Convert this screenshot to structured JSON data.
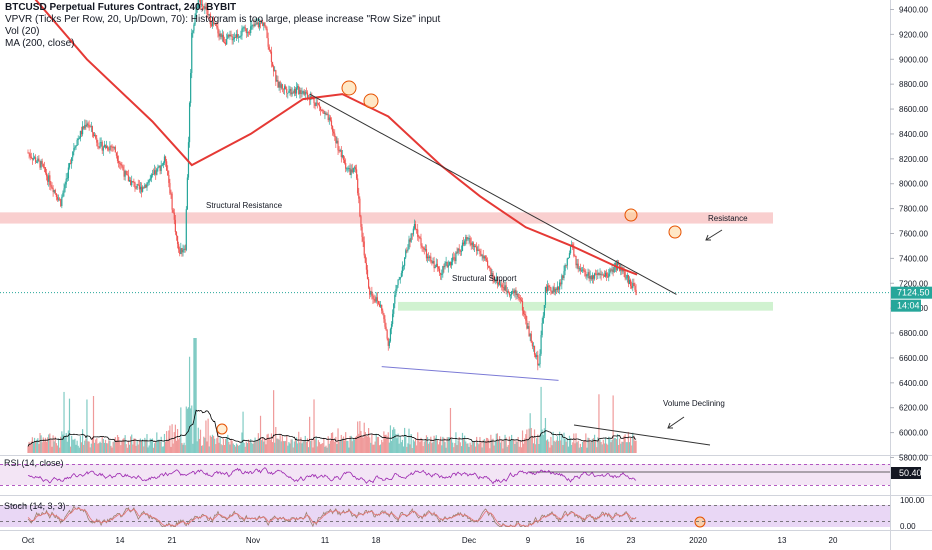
{
  "header": {
    "symbol_line": "BTCUSD Perpetual Futures Contract, 240, BYBIT",
    "vpvr_line": "VPVR (Ticks Per Row, 20, Up/Down, 70): Histogram is too large, please increase \"Row Size\" input",
    "vol_line": "Vol (20)",
    "ma_line": "MA (200, close)"
  },
  "annotations": {
    "structural_resistance": "Structural Resistance",
    "structural_support": "Structural Support",
    "resistance": "Resistance",
    "volume_declining": "Volume Declining"
  },
  "price_axis": {
    "ticks": [
      "9400.00",
      "9200.00",
      "9000.00",
      "8800.00",
      "8600.00",
      "8400.00",
      "8200.00",
      "8000.00",
      "7800.00",
      "7600.00",
      "7400.00",
      "7200.00",
      "7000.00",
      "6800.00",
      "6600.00",
      "6400.00",
      "6200.00",
      "6000.00",
      "5800.00"
    ],
    "last_price": "7124.50",
    "countdown": "14:04"
  },
  "rsi": {
    "label": "RSI (14, close)",
    "value": "50.40"
  },
  "stoch": {
    "label": "Stoch (14, 3, 3)",
    "ticks": [
      "100.00",
      "0.00"
    ]
  },
  "time_axis": {
    "labels": [
      "Oct",
      "14",
      "21",
      "Nov",
      "11",
      "18",
      "Dec",
      "9",
      "16",
      "23",
      "2020",
      "13",
      "20"
    ]
  },
  "colors": {
    "up": "#26a69a",
    "down": "#ef5350",
    "ma": "#e53935",
    "rsi_line": "#9c27b0",
    "stoch_k": "#9c7f6b",
    "stoch_d": "#e57373",
    "resistance_zone": "#f8c7c7",
    "support_zone": "#c8f0c8"
  },
  "chart_data": {
    "type": "candlestick",
    "y_ticks": [
      9400,
      9200,
      9000,
      8800,
      8600,
      8400,
      8200,
      8000,
      7800,
      7600,
      7400,
      7200,
      7000,
      6800,
      6600,
      6400,
      6200,
      6000,
      5800
    ],
    "close_path": [
      [
        "Oct 1",
        8250
      ],
      [
        "Oct 3",
        8150
      ],
      [
        "Oct 6",
        7850
      ],
      [
        "Oct 8",
        8300
      ],
      [
        "Oct 10",
        8500
      ],
      [
        "Oct 12",
        8300
      ],
      [
        "Oct 14",
        8300
      ],
      [
        "Oct 16",
        8050
      ],
      [
        "Oct 18",
        7950
      ],
      [
        "Oct 20",
        8050
      ],
      [
        "Oct 22",
        8200
      ],
      [
        "Oct 24",
        7450
      ],
      [
        "Oct 25",
        7500
      ],
      [
        "Oct 26",
        9200
      ],
      [
        "Oct 27",
        9500
      ],
      [
        "Oct 29",
        9300
      ],
      [
        "Oct 31",
        9150
      ],
      [
        "Nov 2",
        9200
      ],
      [
        "Nov 4",
        9250
      ],
      [
        "Nov 6",
        9300
      ],
      [
        "Nov 8",
        8800
      ],
      [
        "Nov 10",
        8750
      ],
      [
        "Nov 12",
        8750
      ],
      [
        "Nov 14",
        8650
      ],
      [
        "Nov 16",
        8500
      ],
      [
        "Nov 18",
        8200
      ],
      [
        "Nov 19",
        8100
      ],
      [
        "Nov 20",
        8100
      ],
      [
        "Nov 21",
        7600
      ],
      [
        "Nov 22",
        7150
      ],
      [
        "Nov 24",
        7000
      ],
      [
        "Nov 25",
        6700
      ],
      [
        "Nov 26",
        7100
      ],
      [
        "Nov 28",
        7500
      ],
      [
        "Nov 29",
        7650
      ],
      [
        "Dec 1",
        7400
      ],
      [
        "Dec 3",
        7300
      ],
      [
        "Dec 5",
        7400
      ],
      [
        "Dec 7",
        7550
      ],
      [
        "Dec 9",
        7450
      ],
      [
        "Dec 11",
        7250
      ],
      [
        "Dec 13",
        7150
      ],
      [
        "Dec 15",
        7100
      ],
      [
        "Dec 17",
        6700
      ],
      [
        "Dec 18",
        6550
      ],
      [
        "Dec 19",
        7150
      ],
      [
        "Dec 21",
        7150
      ],
      [
        "Dec 23",
        7500
      ],
      [
        "Dec 24",
        7300
      ],
      [
        "Dec 26",
        7250
      ],
      [
        "Dec 28",
        7250
      ],
      [
        "Dec 30",
        7350
      ],
      [
        "Jan 1",
        7200
      ],
      [
        "Jan 2",
        7124.5
      ]
    ],
    "ma200": [
      [
        "Oct 1",
        9550
      ],
      [
        "Oct 10",
        9000
      ],
      [
        "Oct 20",
        8500
      ],
      [
        "Oct 26",
        8150
      ],
      [
        "Nov 4",
        8400
      ],
      [
        "Nov 12",
        8680
      ],
      [
        "Nov 18",
        8720
      ],
      [
        "Nov 25",
        8540
      ],
      [
        "Dec 3",
        8150
      ],
      [
        "Dec 9",
        7900
      ],
      [
        "Dec 16",
        7650
      ],
      [
        "Dec 23",
        7500
      ],
      [
        "Dec 30",
        7330
      ],
      [
        "Jan 2",
        7270
      ]
    ],
    "levels": {
      "structural_resistance": [
        7680,
        7770
      ],
      "structural_support": [
        6980,
        7050
      ],
      "resistance_trendline": [
        [
          "Nov 13",
          8720
        ],
        [
          "Jan 8",
          7110
        ]
      ],
      "support_trendline": [
        [
          "Nov 24",
          6530
        ],
        [
          "Dec 21",
          6420
        ]
      ]
    },
    "rsi_value": 50.4,
    "stoch_range": [
      0,
      100
    ]
  }
}
